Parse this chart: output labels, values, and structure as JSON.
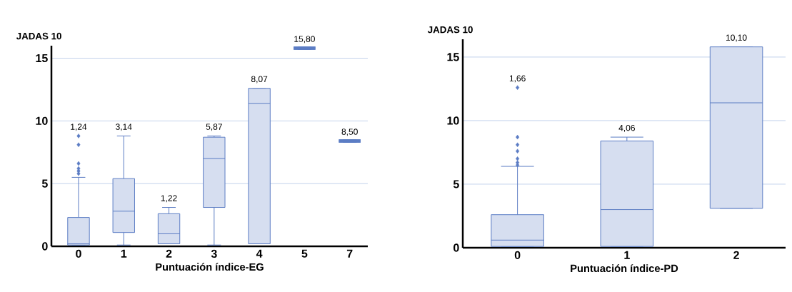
{
  "chart_data": [
    {
      "type": "box",
      "xlabel": "Puntuación índice-EG",
      "ylabel": "JADAS 10",
      "categories": [
        "0",
        "1",
        "2",
        "3",
        "4",
        "5",
        "7"
      ],
      "ylim": [
        0,
        16
      ],
      "yticks": [
        0,
        5,
        10,
        15
      ],
      "grid": "y",
      "series": [
        {
          "color": "#5b7cc4",
          "boxes": [
            {
              "low": 0.1,
              "q1": 0.1,
              "median": 0.2,
              "q3": 2.3,
              "high": 5.5,
              "outliers": [
                5.8,
                6.0,
                6.2,
                6.6,
                8.1,
                8.8
              ]
            },
            {
              "low": 0.1,
              "q1": 1.1,
              "median": 2.8,
              "q3": 5.4,
              "high": 8.8
            },
            {
              "low": 0.2,
              "q1": 0.2,
              "median": 1.0,
              "q3": 2.6,
              "high": 3.1
            },
            {
              "low": 0.1,
              "q1": 3.1,
              "median": 7.0,
              "q3": 8.7,
              "high": 8.8
            },
            {
              "low": 0.2,
              "q1": 0.2,
              "median": 11.4,
              "q3": 12.6,
              "high": 12.6
            },
            {
              "low": 15.8,
              "q1": 15.8,
              "median": 15.8,
              "q3": 15.8,
              "high": 15.8
            },
            {
              "low": 8.4,
              "q1": 8.4,
              "median": 8.4,
              "q3": 8.4,
              "high": 8.4
            }
          ]
        }
      ],
      "annotations": [
        "1,24",
        "3,14",
        "1,22",
        "5,87",
        "8,07",
        "15,80",
        "8,50"
      ]
    },
    {
      "type": "box",
      "xlabel": "Puntuación índice-PD",
      "ylabel": "JADAS 10",
      "categories": [
        "0",
        "1",
        "2"
      ],
      "ylim": [
        0,
        16.4
      ],
      "yticks": [
        0,
        5,
        10,
        15
      ],
      "grid": "y",
      "series": [
        {
          "color": "#5b7cc4",
          "boxes": [
            {
              "low": 0.1,
              "q1": 0.1,
              "median": 0.6,
              "q3": 2.6,
              "high": 6.4,
              "outliers": [
                6.5,
                6.7,
                7.0,
                7.6,
                8.1,
                8.7,
                12.6
              ]
            },
            {
              "low": 0.1,
              "q1": 0.1,
              "median": 3.0,
              "q3": 8.4,
              "high": 8.7
            },
            {
              "low": 3.1,
              "q1": 3.1,
              "median": 11.4,
              "q3": 15.8,
              "high": 15.8
            }
          ]
        }
      ],
      "annotations": [
        "1,66",
        "4,06",
        "10,10"
      ]
    }
  ]
}
